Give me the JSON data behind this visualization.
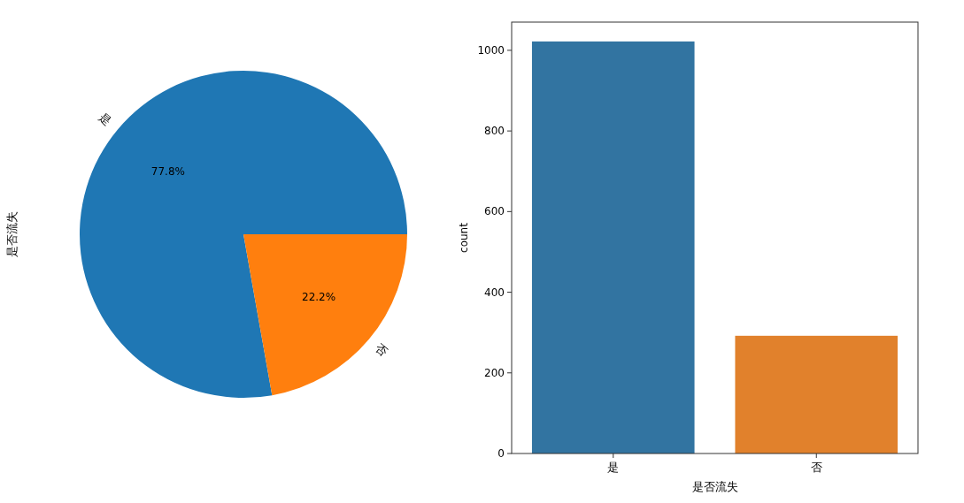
{
  "chart_data": [
    {
      "type": "pie",
      "ylabel": "是否流失",
      "categories": [
        "是",
        "否"
      ],
      "values": [
        77.8,
        22.2
      ],
      "colors": [
        "#1f77b4",
        "#ff7f0e"
      ],
      "value_labels": [
        "77.8%",
        "22.2%"
      ]
    },
    {
      "type": "bar",
      "xlabel": "是否流失",
      "ylabel": "count",
      "categories": [
        "是",
        "否"
      ],
      "values": [
        1022,
        292
      ],
      "colors": [
        "#3274a1",
        "#e1812c"
      ],
      "ylim": [
        0,
        1070
      ],
      "yticks": [
        0,
        200,
        400,
        600,
        800,
        1000
      ]
    }
  ]
}
